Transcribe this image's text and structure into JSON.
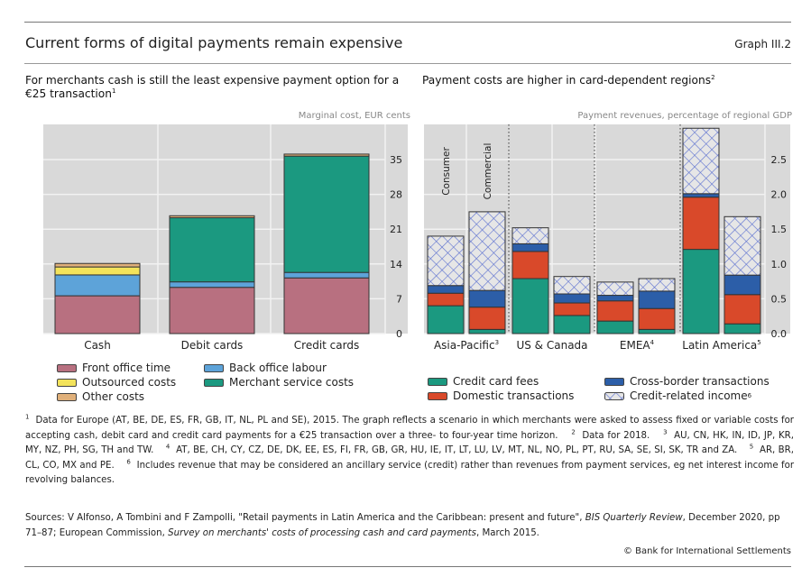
{
  "header": {
    "title": "Current forms of digital payments remain expensive",
    "graph_number": "Graph III.2"
  },
  "chart_data": [
    {
      "type": "bar",
      "stacked": true,
      "title": "For merchants cash is still the least expensive payment option for a €25 transaction",
      "title_footnote": "1",
      "ylabel": "Marginal cost, EUR cents",
      "xlabel": "",
      "ylim": [
        0,
        38
      ],
      "yticks": [
        0,
        7,
        14,
        21,
        28,
        35
      ],
      "ytick_labels": [
        "0",
        "7",
        "14",
        "21",
        "28",
        "35"
      ],
      "y_axis_side": "right",
      "grid": true,
      "categories": [
        "Cash",
        "Debit cards",
        "Credit cards"
      ],
      "series": [
        {
          "name": "Front office time",
          "color": "#b87080",
          "values": [
            7.6,
            9.3,
            11.2
          ]
        },
        {
          "name": "Back office labour",
          "color": "#5da3d9",
          "values": [
            4.2,
            1.1,
            1.1
          ]
        },
        {
          "name": "Outsourced costs",
          "color": "#f3e35b",
          "values": [
            1.6,
            0.0,
            0.0
          ]
        },
        {
          "name": "Merchant service costs",
          "color": "#1b9980",
          "values": [
            0.0,
            12.9,
            23.4
          ]
        },
        {
          "name": "Other costs",
          "color": "#e0b07a",
          "values": [
            0.7,
            0.4,
            0.4
          ]
        }
      ],
      "legend": {
        "placement": "bottom",
        "entries": [
          {
            "name": "Front office time",
            "color": "#b87080"
          },
          {
            "name": "Back office labour",
            "color": "#5da3d9"
          },
          {
            "name": "Outsourced costs",
            "color": "#f3e35b"
          },
          {
            "name": "Merchant service costs",
            "color": "#1b9980"
          },
          {
            "name": "Other costs",
            "color": "#e0b07a"
          }
        ]
      }
    },
    {
      "type": "bar",
      "stacked": true,
      "title": "Payment costs are higher in card-dependent regions",
      "title_footnote": "2",
      "ylabel": "Payment revenues, percentage of regional GDP",
      "xlabel": "",
      "ylim": [
        0,
        3.0
      ],
      "yticks": [
        0,
        0.5,
        1.0,
        1.5,
        2.0,
        2.5
      ],
      "ytick_labels": [
        "0.0",
        "0.5",
        "1.0",
        "1.5",
        "2.0",
        "2.5"
      ],
      "y_axis_side": "right",
      "grid": true,
      "bar_annotations": [
        "Consumer",
        "Commercial"
      ],
      "groups": [
        {
          "label": "Asia-Pacific",
          "footnote": "3"
        },
        {
          "label": "US & Canada",
          "footnote": ""
        },
        {
          "label": "EMEA",
          "footnote": "4"
        },
        {
          "label": "Latin America",
          "footnote": "5"
        }
      ],
      "categories": [
        "Asia-Pacific Consumer",
        "Asia-Pacific Commercial",
        "US & Canada Consumer",
        "US & Canada Commercial",
        "EMEA Consumer",
        "EMEA Commercial",
        "Latin America Consumer",
        "Latin America Commercial"
      ],
      "series": [
        {
          "name": "Credit card fees",
          "color": "#1b9980",
          "pattern": "solid",
          "values": [
            0.4,
            0.06,
            0.79,
            0.26,
            0.18,
            0.06,
            1.21,
            0.14
          ]
        },
        {
          "name": "Domestic transactions",
          "color": "#d9492a",
          "pattern": "solid",
          "values": [
            0.18,
            0.32,
            0.39,
            0.18,
            0.29,
            0.3,
            0.75,
            0.42
          ]
        },
        {
          "name": "Cross-border transactions",
          "color": "#2c5ea8",
          "pattern": "solid",
          "values": [
            0.11,
            0.24,
            0.11,
            0.13,
            0.08,
            0.25,
            0.05,
            0.28
          ]
        },
        {
          "name": "Credit-related income",
          "color": "#5a6fd0",
          "pattern": "crosshatch",
          "values": [
            0.71,
            1.13,
            0.23,
            0.25,
            0.19,
            0.18,
            0.94,
            0.84
          ]
        }
      ],
      "legend": {
        "placement": "bottom",
        "entries": [
          {
            "name": "Credit card fees",
            "color": "#1b9980"
          },
          {
            "name": "Cross-border transactions",
            "color": "#2c5ea8"
          },
          {
            "name": "Domestic transactions",
            "color": "#d9492a"
          },
          {
            "name": "Credit-related income",
            "color": "#5a6fd0",
            "footnote": "6"
          }
        ]
      }
    }
  ],
  "footnotes": {
    "n1_mark": "1",
    "n1": "Data for Europe (AT, BE, DE, ES, FR, GB, IT, NL, PL and SE), 2015. The graph reflects a scenario in which merchants were asked to assess fixed or variable costs for accepting cash, debit card and credit card payments for a €25 transaction over a three- to four-year time horizon.",
    "n2_mark": "2",
    "n2": "Data for 2018.",
    "n3_mark": "3",
    "n3": "AU, CN, HK, IN, ID, JP, KR, MY, NZ, PH, SG, TH and TW.",
    "n4_mark": "4",
    "n4": "AT, BE, CH, CY, CZ, DE, DK, EE, ES, FI, FR, GB, GR, HU, IE, IT, LT, LU, LV, MT, NL, NO, PL, PT, RU, SA, SE, SI, SK, TR and ZA.",
    "n5_mark": "5",
    "n5": "AR, BR, CL, CO, MX and PE.",
    "n6_mark": "6",
    "n6": "Includes revenue that may be considered an ancillary service (credit) rather than revenues from payment services, eg net interest income for revolving balances."
  },
  "sources": {
    "prefix": "Sources: V Alfonso, A Tombini and F Zampolli, \"Retail payments in Latin America and the Caribbean: present and future\",",
    "journal": "BIS Quarterly Review",
    "middle": ", December 2020, pp 71–87; European Commission,",
    "survey": "Survey on merchants' costs of processing cash and card payments",
    "suffix": ", March 2015."
  },
  "copyright": "© Bank for International Settlements"
}
